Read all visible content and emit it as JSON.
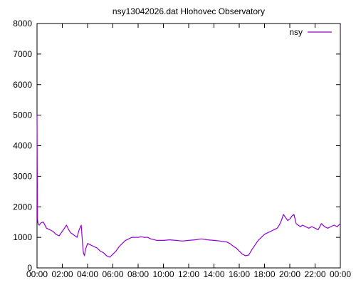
{
  "chart_data": {
    "type": "line",
    "title": "nsy13042026.dat Hlohovec Observatory",
    "xlabel": "",
    "ylabel": "",
    "xlim": [
      "00:00",
      "24:00"
    ],
    "ylim": [
      0,
      8000
    ],
    "yticks": [
      0,
      1000,
      2000,
      3000,
      4000,
      5000,
      6000,
      7000,
      8000
    ],
    "xticks": [
      "00:00",
      "02:00",
      "04:00",
      "06:00",
      "08:00",
      "10:00",
      "12:00",
      "14:00",
      "16:00",
      "18:00",
      "20:00",
      "22:00",
      "00:00"
    ],
    "grid": false,
    "legend": {
      "position": "top-right",
      "entries": [
        "nsy"
      ]
    },
    "series": [
      {
        "name": "nsy",
        "color": "#9400d3",
        "x": [
          "00:00",
          "00:02",
          "00:05",
          "00:10",
          "00:20",
          "00:30",
          "00:45",
          "01:00",
          "01:15",
          "01:30",
          "01:45",
          "02:00",
          "02:10",
          "02:20",
          "02:30",
          "02:40",
          "02:50",
          "03:00",
          "03:10",
          "03:20",
          "03:30",
          "03:35",
          "03:40",
          "03:45",
          "03:50",
          "04:00",
          "04:15",
          "04:30",
          "04:45",
          "05:00",
          "05:15",
          "05:30",
          "05:45",
          "06:00",
          "06:15",
          "06:30",
          "06:45",
          "07:00",
          "07:15",
          "07:30",
          "07:45",
          "08:00",
          "08:15",
          "08:30",
          "08:45",
          "09:00",
          "09:30",
          "10:00",
          "10:30",
          "11:00",
          "11:30",
          "12:00",
          "12:30",
          "13:00",
          "13:30",
          "14:00",
          "14:30",
          "15:00",
          "15:15",
          "15:30",
          "15:45",
          "16:00",
          "16:15",
          "16:30",
          "16:45",
          "17:00",
          "17:15",
          "17:30",
          "17:45",
          "18:00",
          "18:15",
          "18:30",
          "18:45",
          "19:00",
          "19:10",
          "19:20",
          "19:30",
          "19:40",
          "19:50",
          "20:00",
          "20:10",
          "20:20",
          "20:30",
          "20:40",
          "20:50",
          "21:00",
          "21:15",
          "21:30",
          "21:45",
          "22:00",
          "22:15",
          "22:30",
          "22:45",
          "23:00",
          "23:15",
          "23:30",
          "23:45",
          "24:00"
        ],
        "values": [
          5000,
          1600,
          1450,
          1400,
          1480,
          1500,
          1300,
          1250,
          1200,
          1100,
          1050,
          1200,
          1300,
          1400,
          1250,
          1150,
          1100,
          1050,
          1000,
          1250,
          1400,
          900,
          500,
          400,
          600,
          800,
          750,
          700,
          650,
          550,
          500,
          400,
          350,
          450,
          550,
          700,
          800,
          900,
          950,
          1000,
          1000,
          1000,
          1020,
          1000,
          1000,
          950,
          900,
          900,
          920,
          900,
          880,
          900,
          920,
          950,
          920,
          900,
          880,
          850,
          800,
          720,
          650,
          550,
          450,
          400,
          420,
          600,
          750,
          900,
          1000,
          1100,
          1150,
          1200,
          1250,
          1300,
          1400,
          1550,
          1750,
          1650,
          1550,
          1600,
          1700,
          1750,
          1450,
          1400,
          1350,
          1400,
          1350,
          1300,
          1350,
          1300,
          1250,
          1450,
          1350,
          1300,
          1350,
          1400,
          1350,
          1450
        ]
      }
    ]
  }
}
